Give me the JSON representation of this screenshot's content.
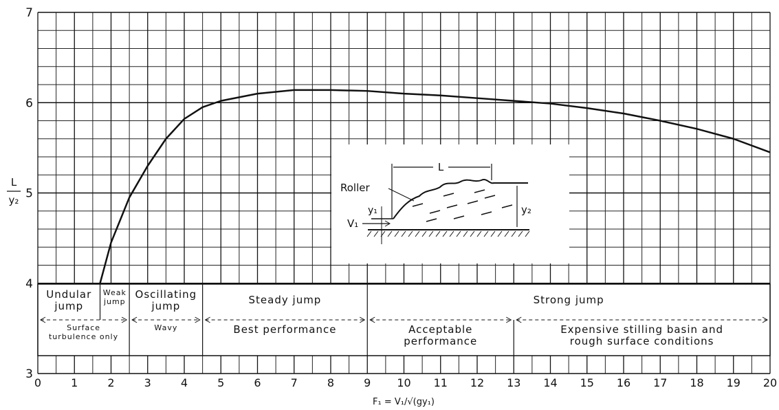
{
  "chart_data": {
    "type": "line",
    "ylabel": {
      "numerator": "L",
      "denominator": "y₂"
    },
    "xlabel": "F₁ = V₁/√(gy₁)",
    "x": [
      1.7,
      2,
      2.5,
      3,
      3.5,
      4,
      4.5,
      5,
      6,
      7,
      8,
      9,
      10,
      11,
      12,
      13,
      14,
      15,
      16,
      17,
      18,
      19,
      20
    ],
    "values": [
      4.0,
      4.45,
      4.95,
      5.3,
      5.6,
      5.82,
      5.95,
      6.02,
      6.1,
      6.14,
      6.14,
      6.13,
      6.1,
      6.08,
      6.05,
      6.02,
      5.99,
      5.94,
      5.88,
      5.8,
      5.71,
      5.6,
      5.45
    ],
    "color": "#111111",
    "xlim": [
      0,
      20
    ],
    "ylim": [
      3,
      7
    ],
    "xticks": [
      0,
      1,
      2,
      3,
      4,
      5,
      6,
      7,
      8,
      9,
      10,
      11,
      12,
      13,
      14,
      15,
      16,
      17,
      18,
      19,
      20
    ],
    "yticks": [
      3,
      4,
      5,
      6,
      7
    ],
    "grid": true,
    "jump_types": [
      {
        "label": "Undular\njump",
        "from": 0,
        "to": 1.7
      },
      {
        "label": "Weak\njump",
        "from": 1.7,
        "to": 2.5
      },
      {
        "label": "Oscillating\njump",
        "from": 2.5,
        "to": 4.5
      },
      {
        "label": "Steady jump",
        "from": 4.5,
        "to": 9
      },
      {
        "label": "Strong jump",
        "from": 9,
        "to": 20
      }
    ],
    "performance": [
      {
        "label": "Surface\nturbulence only",
        "from": 0,
        "to": 2.5
      },
      {
        "label": "Wavy",
        "from": 2.5,
        "to": 4.5
      },
      {
        "label": "Best performance",
        "from": 4.5,
        "to": 9
      },
      {
        "label": "Acceptable\nperformance",
        "from": 9,
        "to": 13
      },
      {
        "label": "Expensive stilling basin and\nrough surface conditions",
        "from": 13,
        "to": 20
      }
    ],
    "inset": {
      "length": "L",
      "roller": "Roller",
      "y1": "y₁",
      "y2": "y₂",
      "v1": "V₁"
    }
  }
}
